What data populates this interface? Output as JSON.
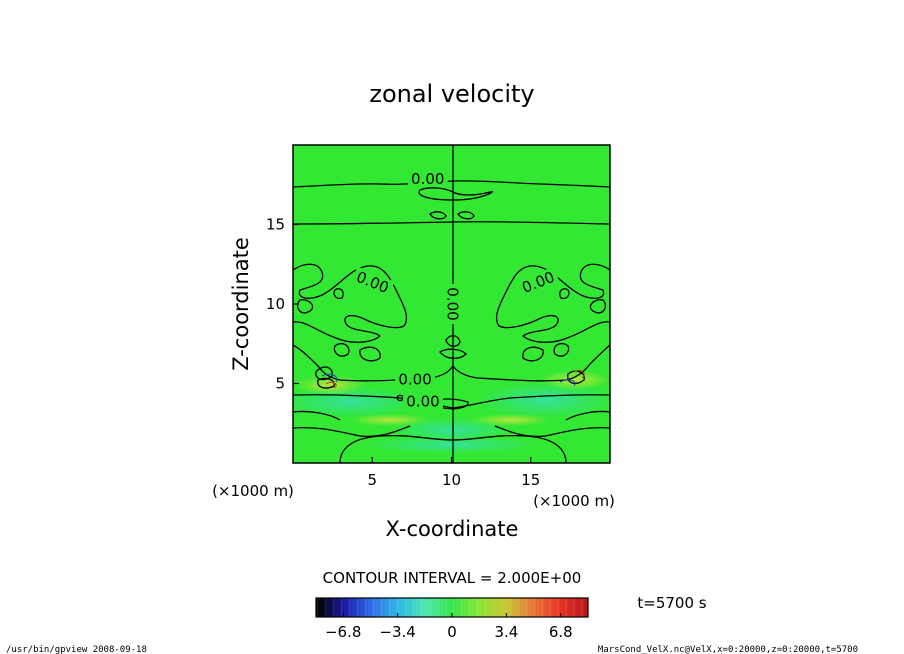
{
  "chart_data": {
    "type": "heatmap",
    "title": "zonal velocity",
    "xlabel": "X-coordinate",
    "ylabel": "Z-coordinate",
    "x_unit": "(×1000 m)",
    "y_unit": "(×1000 m)",
    "xlim": [
      0,
      20
    ],
    "ylim": [
      0,
      20
    ],
    "x_ticks": [
      5,
      10,
      15
    ],
    "y_ticks": [
      5,
      10,
      15
    ],
    "contour_labels": [
      {
        "text": "0.00",
        "x": 8.5,
        "y": 17.8
      },
      {
        "text": "0.00",
        "x": 5.0,
        "y": 11.3
      },
      {
        "text": "0.00",
        "x": 15.5,
        "y": 11.3
      },
      {
        "text": "0.00",
        "x": 10.0,
        "y": 10.0
      },
      {
        "text": "0.00",
        "x": 7.7,
        "y": 5.2
      },
      {
        "text": "0.00",
        "x": 8.2,
        "y": 3.8
      }
    ],
    "contour_interval": "CONTOUR INTERVAL = 2.000E+00",
    "time_label": "t=5700 s",
    "colorbar": {
      "range": [
        -8.5,
        8.5
      ],
      "ticks": [
        -6.8,
        -3.4,
        0,
        3.4,
        6.8
      ],
      "tick_labels": [
        "−6.8",
        "−3.4",
        "0",
        "3.4",
        "6.8"
      ],
      "colors": [
        "#000000",
        "#1a1aa8",
        "#2f6fe6",
        "#2fb8e6",
        "#4ee6b0",
        "#36e64a",
        "#8ae636",
        "#c8c836",
        "#e67a36",
        "#e63626",
        "#b81818"
      ]
    },
    "field_color": "#33e833"
  },
  "footer": {
    "left": "/usr/bin/gpview   2008-09-18",
    "right": "MarsCond_VelX.nc@VelX,x=0:20000,z=0:20000,t=5700"
  }
}
